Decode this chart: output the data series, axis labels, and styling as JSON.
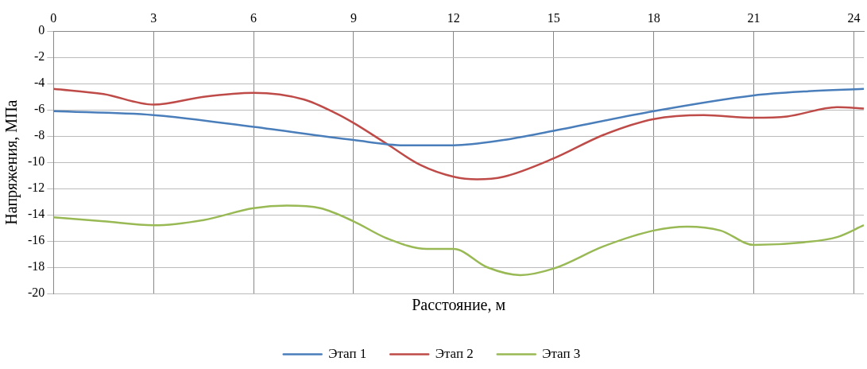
{
  "chart_data": {
    "type": "line",
    "xlabel": "Расстояние, м",
    "ylabel": "Напряжения, МПа",
    "xlim": [
      0,
      24.3
    ],
    "xticks": [
      0,
      3,
      6,
      9,
      12,
      15,
      18,
      21,
      24
    ],
    "ylim": [
      -20,
      0
    ],
    "yticks": [
      -20,
      -18,
      -16,
      -14,
      -12,
      -10,
      -8,
      -6,
      -4,
      -2,
      0
    ],
    "grid": true,
    "legend": "bottom",
    "marker": "none",
    "line_style": "solid",
    "series": [
      {
        "name": "Этап 1",
        "color": "#4a7ebb",
        "x": [
          0,
          3,
          6,
          9,
          10.5,
          12,
          13.5,
          15,
          18,
          21,
          22.5,
          24.3
        ],
        "values": [
          -6.1,
          -6.4,
          -7.3,
          -8.3,
          -8.7,
          -8.7,
          -8.3,
          -7.6,
          -6.1,
          -4.9,
          -4.6,
          -4.4
        ]
      },
      {
        "name": "Этап 2",
        "color": "#be4b48",
        "x": [
          0,
          1.5,
          3,
          4.5,
          6,
          7.5,
          8.5,
          9,
          10,
          11,
          12,
          12.7,
          13.5,
          15,
          16.5,
          18,
          19.5,
          21,
          22,
          23.5,
          24.3
        ],
        "values": [
          -4.4,
          -4.8,
          -5.6,
          -5.0,
          -4.7,
          -5.2,
          -6.3,
          -7.0,
          -8.6,
          -10.2,
          -11.1,
          -11.3,
          -11.1,
          -9.7,
          -7.9,
          -6.7,
          -6.4,
          -6.6,
          -6.5,
          -5.8,
          -5.9
        ]
      },
      {
        "name": "Этап 3",
        "color": "#98b954",
        "x": [
          0,
          1.5,
          3,
          4.5,
          6,
          7,
          8,
          9,
          10,
          11.2,
          12,
          13,
          14,
          15,
          16.5,
          18,
          19,
          20,
          21,
          22.5,
          23.5,
          24.3
        ],
        "values": [
          -14.2,
          -14.5,
          -14.8,
          -14.4,
          -13.5,
          -13.3,
          -13.5,
          -14.5,
          -15.8,
          -16.6,
          -16.6,
          -18.0,
          -18.6,
          -18.1,
          -16.4,
          -15.2,
          -14.9,
          -15.2,
          -16.3,
          -16.1,
          -15.7,
          -14.8
        ]
      }
    ]
  }
}
